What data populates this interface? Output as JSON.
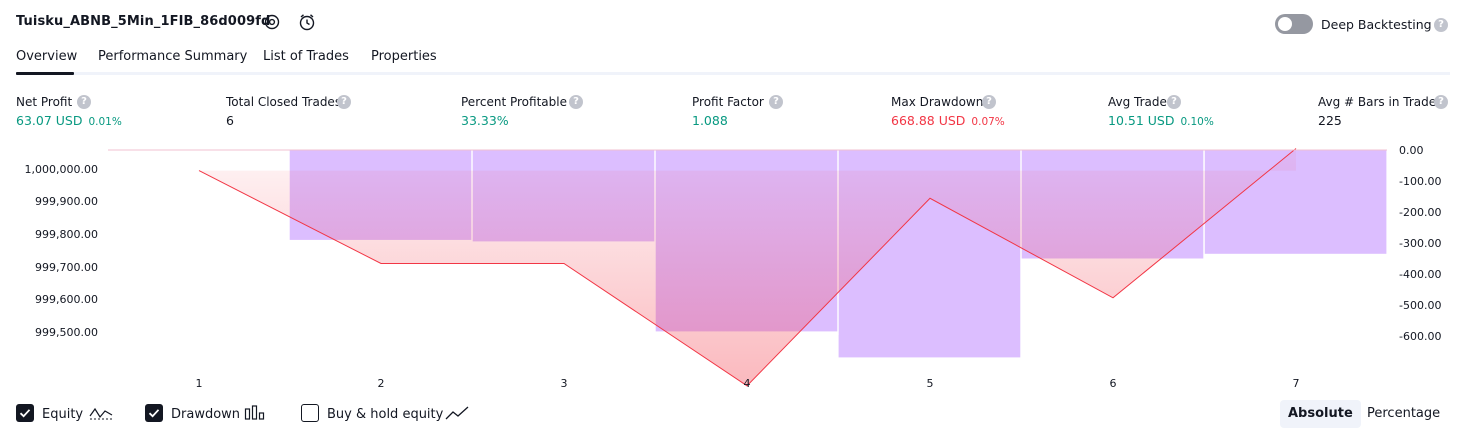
{
  "header": {
    "strategy_name": "Tuisku_ABNB_5Min_1FIB_86d009fd",
    "deep_backtesting_label": "Deep Backtesting",
    "deep_backtesting_on": false
  },
  "tabs": [
    "Overview",
    "Performance Summary",
    "List of Trades",
    "Properties"
  ],
  "active_tab": "Overview",
  "stats": [
    {
      "label": "Net Profit",
      "value": "63.07 USD",
      "pct": "0.01%",
      "color": "green"
    },
    {
      "label": "Total Closed Trades",
      "value": "6",
      "pct": "",
      "color": "dark"
    },
    {
      "label": "Percent Profitable",
      "value": "33.33%",
      "pct": "",
      "color": "green"
    },
    {
      "label": "Profit Factor",
      "value": "1.088",
      "pct": "",
      "color": "green"
    },
    {
      "label": "Max Drawdown",
      "value": "668.88 USD",
      "pct": "0.07%",
      "color": "red"
    },
    {
      "label": "Avg Trade",
      "value": "10.51 USD",
      "pct": "0.10%",
      "color": "green"
    },
    {
      "label": "Avg # Bars in Trades",
      "value": "225",
      "pct": "",
      "color": "dark"
    }
  ],
  "chart_data": {
    "type": "line",
    "categories": [
      "1",
      "2",
      "3",
      "4",
      "5",
      "6",
      "7"
    ],
    "series": [
      {
        "name": "Equity",
        "type": "line",
        "axis": "left",
        "values": [
          999995,
          999710,
          999710,
          999335,
          999910,
          999605,
          1000063
        ],
        "color": "#f23645"
      },
      {
        "name": "Drawdown",
        "type": "bar",
        "axis": "right",
        "values": [
          0,
          -290,
          -295,
          -585,
          -668.88,
          -350,
          -335
        ],
        "color": "#d6b3ff"
      }
    ],
    "y_left_ticks": [
      "1,000,000.00",
      "999,900.00",
      "999,800.00",
      "999,700.00",
      "999,600.00",
      "999,500.00"
    ],
    "y_left_range": [
      999335,
      1000063
    ],
    "y_right_ticks": [
      "0.00",
      "-100.00",
      "-200.00",
      "-300.00",
      "-400.00",
      "-500.00",
      "-600.00"
    ],
    "y_right_range": [
      -668.88,
      0
    ]
  },
  "legend": {
    "equity_label": "Equity",
    "drawdown_label": "Drawdown",
    "buyhold_label": "Buy & hold equity",
    "equity_checked": true,
    "drawdown_checked": true,
    "buyhold_checked": false
  },
  "mode": {
    "absolute_label": "Absolute",
    "percentage_label": "Percentage",
    "selected": "Absolute"
  }
}
